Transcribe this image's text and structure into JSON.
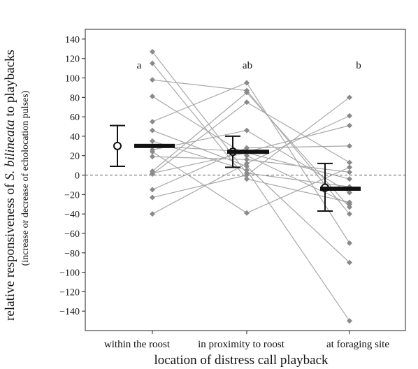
{
  "chart_data": {
    "type": "scatter",
    "xlabel": "location of distress call playback",
    "ylabel": {
      "prefix": "relative responsiveness of ",
      "species": "S. bilineata",
      "suffix": " to playbacks"
    },
    "ylabel_sub": "(increase or decrease of echolocation pulses)",
    "categories": [
      "within the roost",
      "in proximity to roost",
      "at foraging site"
    ],
    "significance_letters": [
      "a",
      "ab",
      "b"
    ],
    "ylim": [
      -160,
      150
    ],
    "yticks": [
      140,
      120,
      100,
      80,
      60,
      40,
      20,
      0,
      -20,
      -40,
      -60,
      -80,
      -100,
      -120,
      -140
    ],
    "reference_line": 0,
    "individuals": [
      [
        127,
        2,
        -12
      ],
      [
        115,
        -4,
        -28
      ],
      [
        98,
        87,
        -40
      ],
      [
        81,
        20,
        -30
      ],
      [
        55,
        95,
        -70
      ],
      [
        46,
        9,
        -90
      ],
      [
        35,
        5,
        -150
      ],
      [
        26,
        46,
        -18
      ],
      [
        24,
        -39,
        8
      ],
      [
        4,
        85,
        -33
      ],
      [
        1,
        75,
        13
      ],
      [
        -15,
        28,
        30
      ],
      [
        -23,
        0,
        80
      ],
      [
        -40,
        12,
        61
      ],
      [
        30,
        24,
        51
      ],
      [
        19,
        16,
        3
      ],
      [
        2,
        23,
        -4
      ]
    ],
    "summary": [
      {
        "mean": 30,
        "lower": 9,
        "upper": 51,
        "median": 30
      },
      {
        "mean": 24,
        "lower": 8,
        "upper": 40,
        "median": 24
      },
      {
        "mean": -13,
        "lower": -37,
        "upper": 12,
        "median": -14
      }
    ],
    "colors": {
      "lines": "#a8a8a8",
      "points": "#8a8a8a",
      "summary": "#111111",
      "median_bar": "#111111",
      "reference": "#555555"
    }
  }
}
